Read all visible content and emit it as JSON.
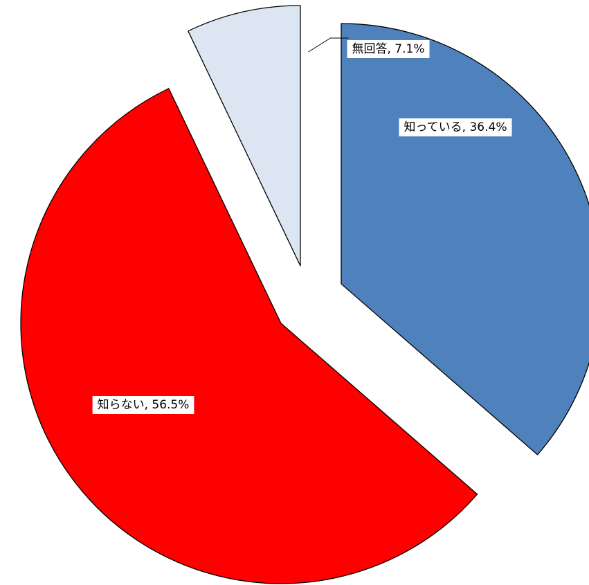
{
  "chart_data": {
    "type": "pie",
    "slices": [
      {
        "name": "知っている",
        "value": 36.4,
        "label": "知っている, 36.4%",
        "color": "#4f81bd"
      },
      {
        "name": "知らない",
        "value": 56.5,
        "label": "知らない, 56.5%",
        "color": "#ff0000"
      },
      {
        "name": "無回答",
        "value": 7.1,
        "label": "無回答, 7.1%",
        "color": "#dce6f2"
      }
    ],
    "start_angle": "12 o'clock",
    "direction": "clockwise",
    "exploded": true,
    "legend": "none"
  }
}
